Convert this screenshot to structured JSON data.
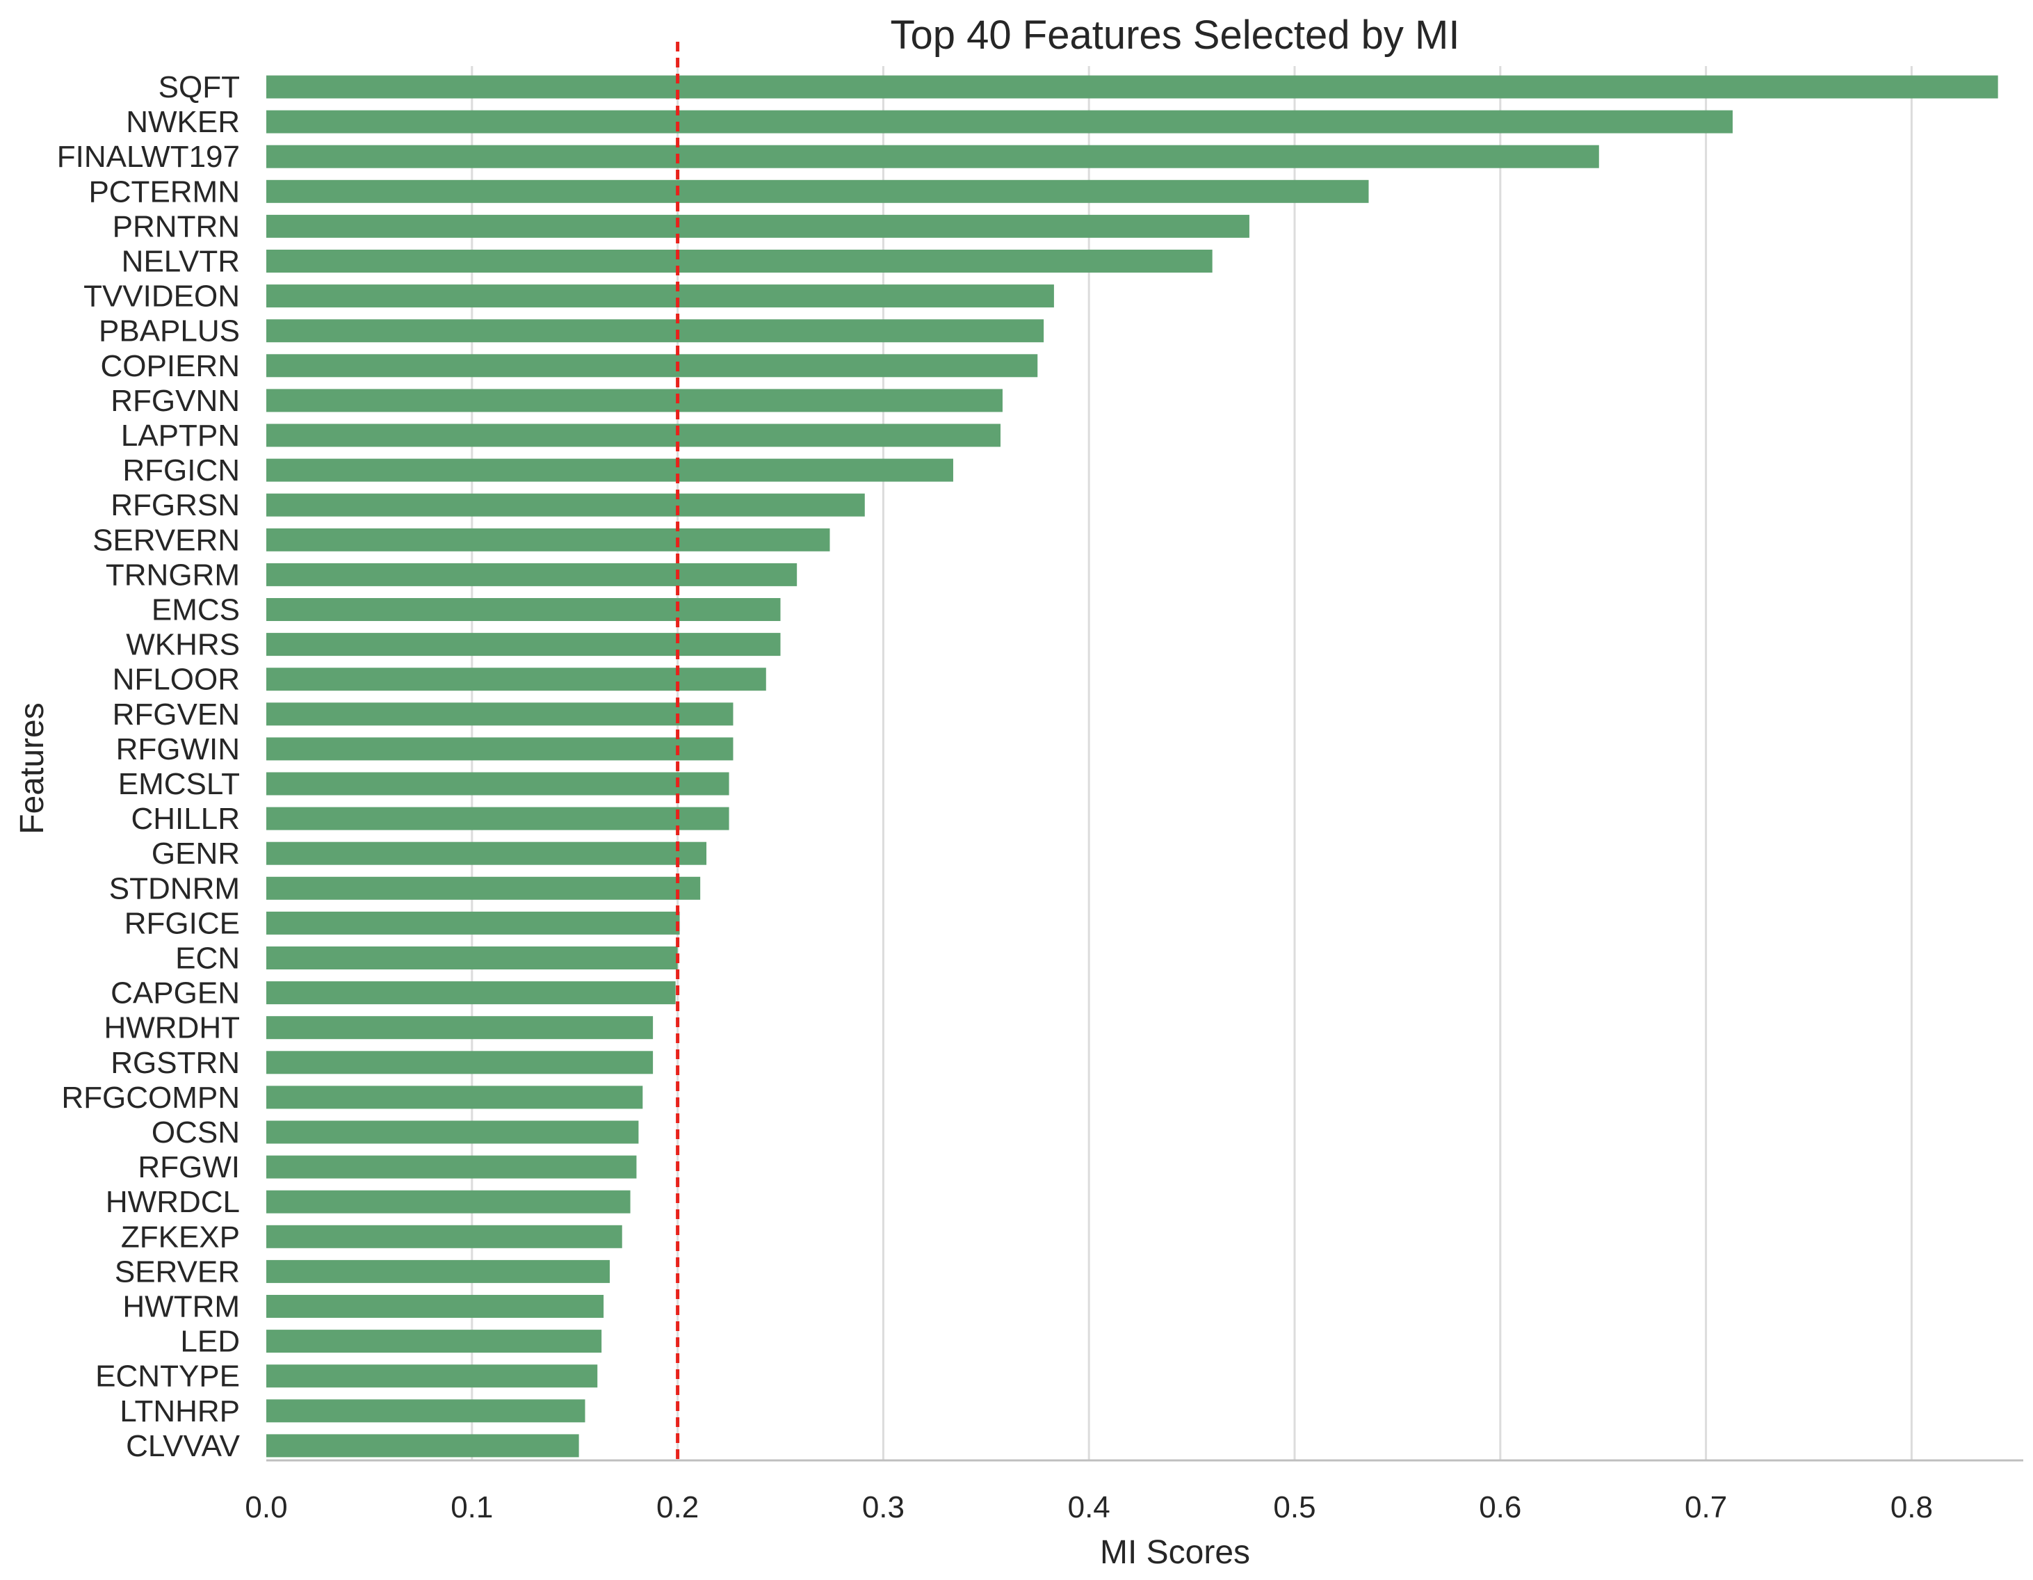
{
  "chart_data": {
    "type": "bar",
    "orientation": "horizontal",
    "title": "Top 40 Features Selected by MI",
    "xlabel": "MI Scores",
    "ylabel": "Features",
    "xlim": [
      0.0,
      0.85
    ],
    "x_ticks": [
      "0.0",
      "0.1",
      "0.2",
      "0.3",
      "0.4",
      "0.5",
      "0.6",
      "0.7",
      "0.8"
    ],
    "grid": "vertical",
    "bar_color": "#5fa271",
    "threshold": {
      "value": 0.2,
      "style": "dashed",
      "color": "#e8221b"
    },
    "categories": [
      "SQFT",
      "NWKER",
      "FINALWT197",
      "PCTERMN",
      "PRNTRN",
      "NELVTR",
      "TVVIDEON",
      "PBAPLUS",
      "COPIERN",
      "RFGVNN",
      "LAPTPN",
      "RFGICN",
      "RFGRSN",
      "SERVERN",
      "TRNGRM",
      "EMCS",
      "WKHRS",
      "NFLOOR",
      "RFGVEN",
      "RFGWIN",
      "EMCSLT",
      "CHILLR",
      "GENR",
      "STDNRM",
      "RFGICE",
      "ECN",
      "CAPGEN",
      "HWRDHT",
      "RGSTRN",
      "RFGCOMPN",
      "OCSN",
      "RFGWI",
      "HWRDCL",
      "ZFKEXP",
      "SERVER",
      "HWTRM",
      "LED",
      "ECNTYPE",
      "LTNHRP",
      "CLVVAV"
    ],
    "values": [
      0.842,
      0.713,
      0.648,
      0.536,
      0.478,
      0.46,
      0.383,
      0.378,
      0.375,
      0.358,
      0.357,
      0.334,
      0.291,
      0.274,
      0.258,
      0.25,
      0.25,
      0.243,
      0.227,
      0.227,
      0.225,
      0.225,
      0.214,
      0.211,
      0.201,
      0.2,
      0.199,
      0.188,
      0.188,
      0.183,
      0.181,
      0.18,
      0.177,
      0.173,
      0.167,
      0.164,
      0.163,
      0.161,
      0.155,
      0.152
    ]
  }
}
